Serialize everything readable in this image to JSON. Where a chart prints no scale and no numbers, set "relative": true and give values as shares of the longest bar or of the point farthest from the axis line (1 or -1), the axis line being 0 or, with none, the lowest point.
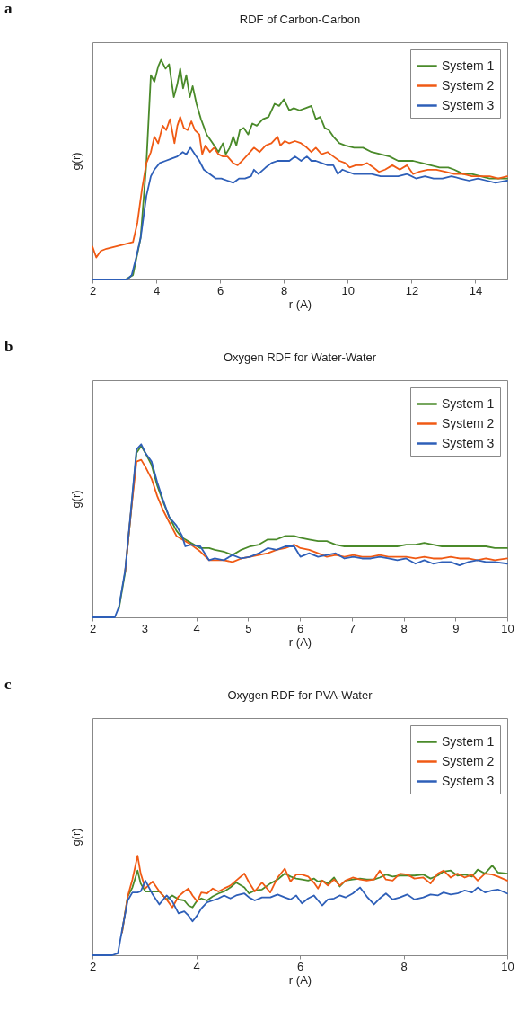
{
  "chart_data": [
    {
      "type": "line",
      "title": "RDF of Carbon-Carbon",
      "xlabel": "r (A)",
      "ylabel": "g(r)",
      "annotations": [
        "a"
      ],
      "relative": true,
      "xlim": [
        2,
        15
      ],
      "xticks": [
        2,
        4,
        6,
        8,
        10,
        12,
        14
      ],
      "grid": false,
      "legend": "top right",
      "tick_labels": "x",
      "series": [
        {
          "name": "System 1",
          "color": "#4a8a2a",
          "x": [
            2.0,
            3.04,
            3.27,
            3.51,
            3.69,
            3.83,
            3.94,
            4.06,
            4.15,
            4.29,
            4.4,
            4.55,
            4.66,
            4.75,
            4.84,
            4.94,
            5.05,
            5.14,
            5.26,
            5.4,
            5.58,
            5.77,
            5.95,
            6.09,
            6.18,
            6.3,
            6.41,
            6.51,
            6.62,
            6.74,
            6.88,
            7.01,
            7.15,
            7.34,
            7.52,
            7.71,
            7.85,
            8.0,
            8.17,
            8.31,
            8.49,
            8.68,
            8.86,
            9.0,
            9.14,
            9.28,
            9.41,
            9.55,
            9.74,
            9.92,
            10.2,
            10.48,
            10.75,
            11.03,
            11.31,
            11.58,
            11.86,
            12.05,
            12.32,
            12.6,
            12.88,
            13.15,
            13.34,
            13.62,
            13.89,
            14.17,
            14.45,
            14.72,
            15.0
          ],
          "values": [
            0,
            0,
            0.02,
            0.19,
            0.53,
            0.93,
            0.9,
            0.97,
            1.0,
            0.96,
            0.98,
            0.83,
            0.89,
            0.96,
            0.87,
            0.93,
            0.83,
            0.88,
            0.8,
            0.73,
            0.66,
            0.62,
            0.58,
            0.62,
            0.57,
            0.6,
            0.65,
            0.61,
            0.68,
            0.69,
            0.66,
            0.71,
            0.7,
            0.73,
            0.74,
            0.8,
            0.79,
            0.82,
            0.77,
            0.78,
            0.77,
            0.78,
            0.79,
            0.73,
            0.74,
            0.69,
            0.68,
            0.65,
            0.62,
            0.61,
            0.6,
            0.6,
            0.58,
            0.57,
            0.56,
            0.54,
            0.54,
            0.54,
            0.53,
            0.52,
            0.51,
            0.51,
            0.5,
            0.48,
            0.48,
            0.47,
            0.46,
            0.46,
            0.46
          ]
        },
        {
          "name": "System 2",
          "color": "#f05a14",
          "x": [
            2.0,
            2.12,
            2.26,
            2.44,
            2.72,
            3.0,
            3.27,
            3.41,
            3.55,
            3.69,
            3.83,
            3.94,
            4.06,
            4.2,
            4.31,
            4.43,
            4.57,
            4.66,
            4.75,
            4.86,
            4.98,
            5.1,
            5.21,
            5.35,
            5.44,
            5.54,
            5.68,
            5.81,
            5.95,
            6.09,
            6.23,
            6.41,
            6.55,
            6.69,
            6.88,
            7.06,
            7.24,
            7.43,
            7.61,
            7.8,
            7.89,
            8.03,
            8.17,
            8.35,
            8.54,
            8.72,
            8.86,
            9.0,
            9.18,
            9.37,
            9.55,
            9.74,
            9.92,
            10.06,
            10.25,
            10.43,
            10.61,
            10.8,
            10.98,
            11.17,
            11.4,
            11.63,
            11.86,
            12.05,
            12.23,
            12.51,
            12.78,
            13.06,
            13.34,
            13.62,
            13.89,
            14.17,
            14.45,
            14.72,
            15.0
          ],
          "values": [
            0.15,
            0.1,
            0.13,
            0.14,
            0.15,
            0.16,
            0.17,
            0.26,
            0.41,
            0.53,
            0.58,
            0.65,
            0.62,
            0.7,
            0.68,
            0.73,
            0.62,
            0.7,
            0.74,
            0.69,
            0.68,
            0.72,
            0.68,
            0.66,
            0.57,
            0.61,
            0.58,
            0.6,
            0.57,
            0.56,
            0.56,
            0.53,
            0.52,
            0.54,
            0.57,
            0.6,
            0.58,
            0.61,
            0.62,
            0.65,
            0.61,
            0.63,
            0.62,
            0.63,
            0.62,
            0.6,
            0.58,
            0.6,
            0.57,
            0.58,
            0.56,
            0.54,
            0.53,
            0.51,
            0.52,
            0.52,
            0.53,
            0.51,
            0.49,
            0.5,
            0.52,
            0.5,
            0.52,
            0.48,
            0.49,
            0.5,
            0.5,
            0.49,
            0.48,
            0.48,
            0.47,
            0.47,
            0.47,
            0.46,
            0.47
          ]
        },
        {
          "name": "System 3",
          "color": "#2e5fb8",
          "x": [
            2.0,
            3.09,
            3.23,
            3.37,
            3.51,
            3.69,
            3.83,
            3.94,
            4.11,
            4.29,
            4.47,
            4.66,
            4.83,
            4.94,
            5.07,
            5.21,
            5.35,
            5.49,
            5.68,
            5.86,
            6.04,
            6.23,
            6.41,
            6.6,
            6.78,
            6.97,
            7.06,
            7.2,
            7.43,
            7.61,
            7.8,
            7.98,
            8.17,
            8.35,
            8.54,
            8.72,
            8.86,
            9.0,
            9.18,
            9.37,
            9.55,
            9.69,
            9.83,
            10.01,
            10.2,
            10.48,
            10.75,
            11.03,
            11.31,
            11.58,
            11.86,
            12.14,
            12.42,
            12.69,
            12.97,
            13.25,
            13.52,
            13.8,
            14.08,
            14.36,
            14.63,
            15.0
          ],
          "values": [
            0,
            0,
            0.02,
            0.1,
            0.19,
            0.38,
            0.47,
            0.5,
            0.53,
            0.54,
            0.55,
            0.56,
            0.58,
            0.57,
            0.6,
            0.57,
            0.54,
            0.5,
            0.48,
            0.46,
            0.46,
            0.45,
            0.44,
            0.46,
            0.46,
            0.47,
            0.5,
            0.48,
            0.51,
            0.53,
            0.54,
            0.54,
            0.54,
            0.56,
            0.54,
            0.56,
            0.54,
            0.54,
            0.53,
            0.52,
            0.52,
            0.48,
            0.5,
            0.49,
            0.48,
            0.48,
            0.48,
            0.47,
            0.47,
            0.47,
            0.48,
            0.46,
            0.47,
            0.46,
            0.46,
            0.47,
            0.46,
            0.45,
            0.46,
            0.45,
            0.44,
            0.45
          ]
        }
      ]
    },
    {
      "type": "line",
      "title": "Oxygen RDF for Water-Water",
      "xlabel": "r (A)",
      "ylabel": "g(r)",
      "annotations": [
        "b"
      ],
      "relative": true,
      "xlim": [
        2,
        10
      ],
      "xticks": [
        2,
        3,
        4,
        5,
        6,
        7,
        8,
        9,
        10
      ],
      "grid": false,
      "legend": "top right",
      "tick_labels": "x",
      "x": [
        2.0,
        2.43,
        2.51,
        2.63,
        2.74,
        2.85,
        2.94,
        3.02,
        3.14,
        3.25,
        3.36,
        3.48,
        3.62,
        3.73,
        3.79,
        3.9,
        4.08,
        4.25,
        4.36,
        4.53,
        4.7,
        4.87,
        5.04,
        5.21,
        5.38,
        5.55,
        5.72,
        5.89,
        6.01,
        6.18,
        6.35,
        6.52,
        6.69,
        6.86,
        7.03,
        7.2,
        7.37,
        7.54,
        7.71,
        7.88,
        8.05,
        8.23,
        8.4,
        8.57,
        8.74,
        8.91,
        9.08,
        9.25,
        9.42,
        9.59,
        9.76,
        10.0
      ],
      "series": [
        {
          "name": "System 1",
          "color": "#4a8a2a",
          "values": [
            null,
            null,
            0.05,
            0.26,
            0.6,
            0.95,
            0.99,
            0.95,
            0.88,
            0.76,
            0.67,
            0.58,
            0.5,
            0.46,
            0.45,
            0.43,
            0.4,
            0.4,
            0.39,
            0.38,
            0.36,
            0.39,
            0.41,
            0.42,
            0.45,
            0.45,
            0.47,
            0.47,
            0.46,
            0.45,
            0.44,
            0.44,
            0.42,
            0.41,
            0.41,
            0.41,
            0.41,
            0.41,
            0.41,
            0.41,
            0.42,
            0.42,
            0.43,
            0.42,
            0.41,
            0.41,
            0.41,
            0.41,
            0.41,
            0.41,
            0.4,
            0.4
          ]
        },
        {
          "name": "System 2",
          "color": "#f05a14",
          "values": [
            null,
            null,
            null,
            0.26,
            0.6,
            0.9,
            0.91,
            0.87,
            0.8,
            0.7,
            0.62,
            0.55,
            0.47,
            0.45,
            0.44,
            0.42,
            0.38,
            0.33,
            0.33,
            0.33,
            0.32,
            0.34,
            0.35,
            0.36,
            0.37,
            0.39,
            0.4,
            0.42,
            0.4,
            0.39,
            0.37,
            0.35,
            0.36,
            0.35,
            0.36,
            0.35,
            0.35,
            0.36,
            0.35,
            0.35,
            0.35,
            0.34,
            0.35,
            0.34,
            0.34,
            0.35,
            0.34,
            0.34,
            0.33,
            0.34,
            0.33,
            0.34
          ]
        },
        {
          "name": "System 3",
          "color": "#2e5fb8",
          "values": [
            0,
            0,
            0.06,
            0.27,
            0.61,
            0.97,
            1.0,
            0.95,
            0.9,
            0.78,
            0.68,
            0.58,
            0.53,
            0.47,
            0.41,
            0.42,
            0.41,
            0.33,
            0.34,
            0.33,
            0.36,
            0.34,
            0.35,
            0.37,
            0.4,
            0.39,
            0.41,
            0.41,
            0.35,
            0.37,
            0.35,
            0.36,
            0.37,
            0.34,
            0.35,
            0.34,
            0.34,
            0.35,
            0.34,
            0.33,
            0.34,
            0.31,
            0.33,
            0.31,
            0.32,
            0.32,
            0.3,
            0.32,
            0.33,
            0.32,
            0.32,
            0.31
          ]
        }
      ]
    },
    {
      "type": "line",
      "title": "Oxygen RDF for PVA-Water",
      "xlabel": "r (A)",
      "ylabel": "g(r)",
      "annotations": [
        "c"
      ],
      "relative": true,
      "xlim": [
        2,
        10
      ],
      "xticks": [
        2,
        4,
        6,
        8,
        10
      ],
      "grid": false,
      "legend": "top right",
      "tick_labels": "x",
      "x": [
        2.0,
        2.38,
        2.49,
        2.57,
        2.68,
        2.77,
        2.87,
        2.93,
        3.02,
        3.16,
        3.29,
        3.43,
        3.54,
        3.66,
        3.77,
        3.85,
        3.93,
        4.02,
        4.1,
        4.21,
        4.32,
        4.43,
        4.54,
        4.66,
        4.77,
        4.93,
        5.02,
        5.13,
        5.27,
        5.43,
        5.57,
        5.71,
        5.82,
        5.93,
        6.04,
        6.16,
        6.27,
        6.35,
        6.43,
        6.54,
        6.66,
        6.77,
        6.88,
        7.02,
        7.16,
        7.29,
        7.43,
        7.54,
        7.66,
        7.79,
        7.93,
        8.07,
        8.21,
        8.38,
        8.52,
        8.66,
        8.77,
        8.91,
        9.04,
        9.18,
        9.32,
        9.43,
        9.57,
        9.71,
        9.82,
        10.0
      ],
      "series": [
        {
          "name": "System 1",
          "color": "#4a8a2a",
          "values": [
            null,
            null,
            null,
            0.23,
            0.59,
            0.68,
            0.85,
            0.72,
            0.64,
            0.64,
            0.64,
            0.56,
            0.6,
            0.56,
            0.55,
            0.5,
            0.48,
            0.55,
            0.57,
            0.55,
            0.59,
            0.62,
            0.64,
            0.68,
            0.73,
            0.68,
            0.62,
            0.65,
            0.66,
            0.72,
            0.76,
            0.82,
            0.79,
            0.77,
            0.76,
            0.75,
            0.77,
            0.74,
            0.75,
            0.72,
            0.78,
            0.69,
            0.75,
            0.76,
            0.77,
            0.76,
            0.76,
            0.78,
            0.81,
            0.79,
            0.8,
            0.8,
            0.8,
            0.81,
            0.77,
            0.8,
            0.84,
            0.85,
            0.8,
            0.81,
            0.79,
            0.86,
            0.82,
            0.9,
            0.83,
            0.82
          ]
        },
        {
          "name": "System 2",
          "color": "#f05a14",
          "values": [
            null,
            null,
            null,
            0.23,
            0.59,
            0.76,
            1.0,
            0.82,
            0.67,
            0.74,
            0.64,
            0.56,
            0.48,
            0.59,
            0.64,
            0.67,
            0.6,
            0.54,
            0.63,
            0.62,
            0.67,
            0.64,
            0.67,
            0.7,
            0.75,
            0.82,
            0.73,
            0.64,
            0.73,
            0.63,
            0.78,
            0.87,
            0.74,
            0.81,
            0.81,
            0.79,
            0.73,
            0.67,
            0.75,
            0.7,
            0.76,
            0.7,
            0.75,
            0.78,
            0.76,
            0.75,
            0.76,
            0.85,
            0.76,
            0.75,
            0.82,
            0.81,
            0.77,
            0.78,
            0.72,
            0.82,
            0.85,
            0.78,
            0.82,
            0.78,
            0.81,
            0.75,
            0.82,
            0.81,
            0.79,
            0.75
          ]
        },
        {
          "name": "System 3",
          "color": "#2e5fb8",
          "values": [
            0,
            0,
            0.02,
            0.25,
            0.55,
            0.63,
            0.63,
            0.64,
            0.75,
            0.61,
            0.51,
            0.6,
            0.54,
            0.42,
            0.44,
            0.4,
            0.34,
            0.4,
            0.47,
            0.53,
            0.55,
            0.57,
            0.6,
            0.57,
            0.6,
            0.62,
            0.58,
            0.55,
            0.58,
            0.58,
            0.61,
            0.58,
            0.56,
            0.6,
            0.52,
            0.57,
            0.6,
            0.55,
            0.5,
            0.56,
            0.57,
            0.6,
            0.58,
            0.62,
            0.68,
            0.59,
            0.51,
            0.57,
            0.62,
            0.56,
            0.58,
            0.61,
            0.56,
            0.58,
            0.61,
            0.6,
            0.63,
            0.61,
            0.62,
            0.65,
            0.63,
            0.68,
            0.63,
            0.65,
            0.66,
            0.62
          ]
        }
      ]
    }
  ]
}
